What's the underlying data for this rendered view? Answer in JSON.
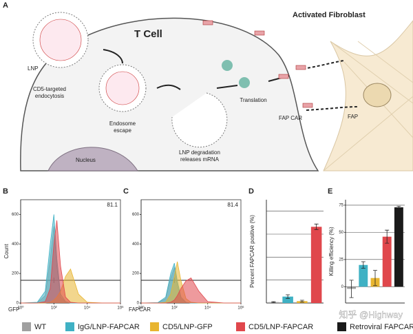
{
  "diagram": {
    "panel": "A",
    "t_cell": "T Cell",
    "fibroblast": "Activated Fibroblast",
    "lnp": "LNP",
    "endocytosis": [
      "CD5-targeted",
      "endocytosis"
    ],
    "endosome": [
      "Endosome",
      "escape"
    ],
    "degradation": [
      "LNP degradation",
      "releases mRNA"
    ],
    "translation": "Translation",
    "fap_car": "FAP CAR",
    "fap": "FAP",
    "nucleus": "Nucleus"
  },
  "chart_data": [
    {
      "type": "area",
      "panel": "B",
      "x_label": "GFP",
      "y_label": "Count",
      "annotation": "81.1",
      "log_x": true,
      "x": [
        1,
        10,
        30,
        60,
        100,
        150,
        250,
        500,
        1000,
        3000,
        10000,
        100000,
        1000000
      ],
      "xlim": [
        1,
        1000000
      ],
      "xticks": [
        {
          "value": 1,
          "label": "10⁰"
        },
        {
          "value": 100,
          "label": "10²"
        },
        {
          "value": 10000,
          "label": "10⁴"
        },
        {
          "value": 1000000,
          "label": "10⁶"
        }
      ],
      "ylim": [
        0,
        700
      ],
      "yticks": [
        0,
        200,
        400,
        600
      ],
      "series": [
        {
          "color": "#a0a0a0",
          "values": [
            0,
            3,
            50,
            300,
            520,
            250,
            40,
            5,
            0,
            0,
            0,
            0,
            0
          ]
        },
        {
          "color": "#3fb1c4",
          "values": [
            0,
            5,
            80,
            400,
            600,
            300,
            60,
            10,
            0,
            0,
            0,
            0,
            0
          ]
        },
        {
          "color": "#e8b530",
          "values": [
            0,
            0,
            0,
            5,
            20,
            40,
            80,
            180,
            230,
            60,
            5,
            0,
            0
          ]
        },
        {
          "color": "#e0474c",
          "values": [
            0,
            0,
            10,
            100,
            400,
            560,
            250,
            40,
            5,
            0,
            0,
            0,
            0
          ]
        }
      ]
    },
    {
      "type": "area",
      "panel": "C",
      "x_label": "FAPCAR",
      "annotation": "81.4",
      "log_x": true,
      "x": [
        1,
        10,
        30,
        60,
        100,
        150,
        250,
        500,
        1000,
        3000,
        10000,
        100000,
        1000000
      ],
      "xlim": [
        1,
        1000000
      ],
      "xticks": [
        {
          "value": 1,
          "label": "10⁰"
        },
        {
          "value": 100,
          "label": "10²"
        },
        {
          "value": 10000,
          "label": "10⁴"
        },
        {
          "value": 1000000,
          "label": "10⁶"
        }
      ],
      "ylim": [
        0,
        700
      ],
      "yticks": [
        0,
        200,
        400,
        600
      ],
      "series": [
        {
          "color": "#a0a0a0",
          "values": [
            0,
            2,
            30,
            170,
            240,
            120,
            30,
            4,
            0,
            0,
            0,
            0,
            0
          ]
        },
        {
          "color": "#3fb1c4",
          "values": [
            0,
            3,
            40,
            200,
            270,
            150,
            40,
            5,
            0,
            0,
            0,
            0,
            0
          ]
        },
        {
          "color": "#e8b530",
          "values": [
            0,
            0,
            5,
            60,
            180,
            280,
            150,
            30,
            5,
            0,
            0,
            0,
            0
          ]
        },
        {
          "color": "#e0474c",
          "values": [
            0,
            0,
            0,
            5,
            20,
            50,
            100,
            150,
            170,
            80,
            10,
            0,
            0
          ]
        }
      ]
    },
    {
      "type": "bar",
      "panel": "D",
      "y_label": "Percent FAPCAR positive (%)",
      "categories": [
        null,
        null,
        null,
        null
      ],
      "values": [
        1,
        7,
        2,
        83
      ],
      "errors": [
        0.5,
        2,
        1,
        3
      ],
      "colors": [
        "#a0a0a0",
        "#3fb1c4",
        "#e8b530",
        "#e0474c"
      ],
      "ylim": [
        0,
        112.5
      ],
      "ygrid": [
        25,
        50,
        75,
        100
      ]
    },
    {
      "type": "bar",
      "panel": "E",
      "y_label": "Killing efficiency (%)",
      "categories": [
        null,
        null,
        null,
        null,
        null
      ],
      "values": [
        -2,
        20,
        8,
        46,
        73
      ],
      "errors": [
        8,
        3,
        7,
        6,
        1
      ],
      "colors": [
        "#a0a0a0",
        "#3fb1c4",
        "#e8b530",
        "#e0474c",
        "#1a1a1a"
      ],
      "ylim": [
        -15,
        80
      ],
      "yticks": [
        0,
        25,
        50,
        75
      ],
      "grid": true
    }
  ],
  "legend": [
    {
      "name": "WT",
      "color": "#a0a0a0"
    },
    {
      "name": "IgG/LNP-FAPCAR",
      "color": "#3fb1c4"
    },
    {
      "name": "CD5/LNP-GFP",
      "color": "#e8b530"
    },
    {
      "name": "CD5/LNP-FAPCAR",
      "color": "#e0474c"
    },
    {
      "name": "Retroviral FAPCAR",
      "color": "#1a1a1a"
    }
  ],
  "watermark": "知乎 @Highway"
}
